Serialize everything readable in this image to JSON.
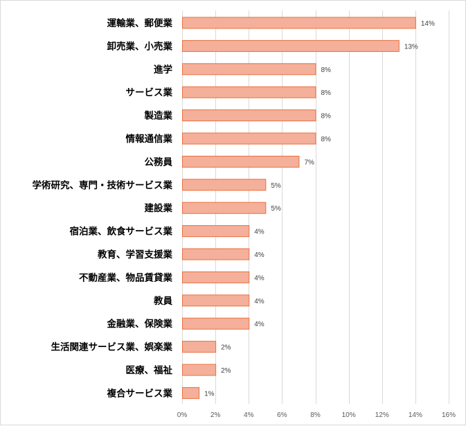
{
  "chart_data": {
    "type": "bar",
    "orientation": "horizontal",
    "categories": [
      "運輸業、郵便業",
      "卸売業、小売業",
      "進学",
      "サービス業",
      "製造業",
      "情報通信業",
      "公務員",
      "学術研究、専門・技術サービス業",
      "建設業",
      "宿泊業、飲食サービス業",
      "教育、学習支援業",
      "不動産業、物品賃貸業",
      "教員",
      "金融業、保険業",
      "生活関連サービス業、娯楽業",
      "医療、福祉",
      "複合サービス業"
    ],
    "values": [
      14,
      13,
      8,
      8,
      8,
      8,
      7,
      5,
      5,
      4,
      4,
      4,
      4,
      4,
      2,
      2,
      1
    ],
    "value_labels": [
      "14%",
      "13%",
      "8%",
      "8%",
      "8%",
      "8%",
      "7%",
      "5%",
      "5%",
      "4%",
      "4%",
      "4%",
      "4%",
      "4%",
      "2%",
      "2%",
      "1%"
    ],
    "xlim": [
      0,
      16
    ],
    "xticks": [
      0,
      2,
      4,
      6,
      8,
      10,
      12,
      14,
      16
    ],
    "xtick_labels": [
      "0%",
      "2%",
      "4%",
      "6%",
      "8%",
      "10%",
      "12%",
      "14%",
      "16%"
    ],
    "grid": "vertical",
    "legend": "none",
    "title": "",
    "xlabel": "",
    "ylabel": ""
  },
  "colors": {
    "bar_fill": "#f4b09a",
    "bar_stroke": "#e8703f",
    "gridline": "#d9d9d9",
    "frame": "#d9d9d9"
  }
}
